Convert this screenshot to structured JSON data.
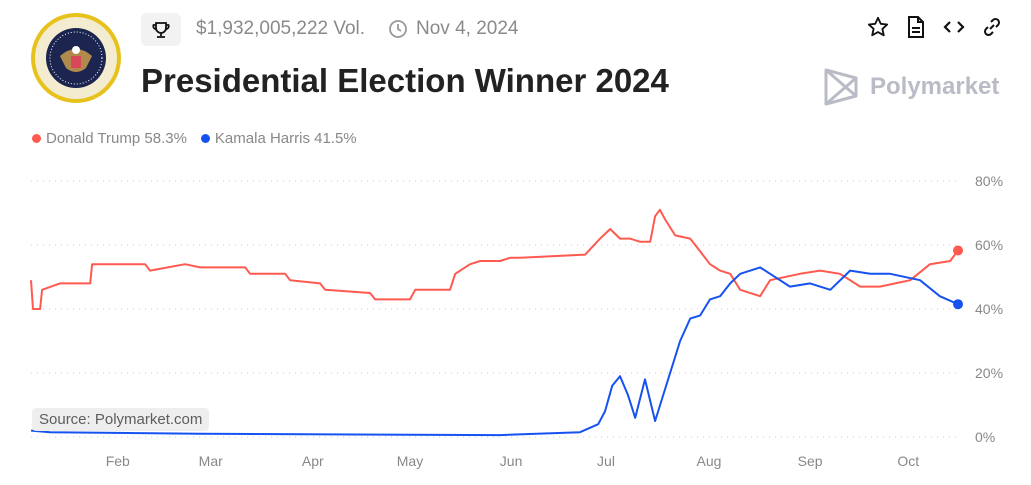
{
  "header": {
    "volume": "$1,932,005,222 Vol.",
    "date": "Nov 4, 2024",
    "title": "Presidential Election Winner 2024",
    "brand": "Polymarket",
    "seal_text": "SEAL OF THE PRESIDENT OF THE UNITED STATES"
  },
  "icons": [
    "trophy-icon",
    "clock-icon",
    "star-icon",
    "document-icon",
    "code-icon",
    "link-icon"
  ],
  "legend": [
    {
      "label": "Donald Trump 58.3%",
      "color": "#ff5a4f"
    },
    {
      "label": "Kamala Harris 41.5%",
      "color": "#1652f0"
    }
  ],
  "source": "Source: Polymarket.com",
  "chart_data": {
    "type": "line",
    "x_unit": "day of year 2024",
    "xlim": [
      4.3,
      289.5
    ],
    "ylim": [
      0,
      80
    ],
    "yticks": [
      {
        "v": 0,
        "label": "0%"
      },
      {
        "v": 20,
        "label": "20%"
      },
      {
        "v": 40,
        "label": "40%"
      },
      {
        "v": 60,
        "label": "60%"
      },
      {
        "v": 80,
        "label": "80%"
      }
    ],
    "xticks": [
      {
        "v": 31,
        "label": "Feb"
      },
      {
        "v": 59.6,
        "label": "Mar"
      },
      {
        "v": 91,
        "label": "Apr"
      },
      {
        "v": 120.9,
        "label": "May"
      },
      {
        "v": 152,
        "label": "Jun"
      },
      {
        "v": 181.2,
        "label": "Jul"
      },
      {
        "v": 212.9,
        "label": "Aug"
      },
      {
        "v": 244,
        "label": "Sep"
      },
      {
        "v": 274.2,
        "label": "Oct"
      }
    ],
    "grid": true,
    "series": [
      {
        "name": "Donald Trump",
        "color": "#ff5a4f",
        "points": [
          [
            4.3,
            49
          ],
          [
            4.9,
            40
          ],
          [
            7.1,
            40
          ],
          [
            7.7,
            46
          ],
          [
            13.2,
            48
          ],
          [
            22.5,
            48
          ],
          [
            23.1,
            54
          ],
          [
            39.4,
            54
          ],
          [
            40.9,
            52
          ],
          [
            51.7,
            54
          ],
          [
            56.3,
            53
          ],
          [
            70.2,
            53
          ],
          [
            71.7,
            51
          ],
          [
            82.5,
            51
          ],
          [
            84,
            49
          ],
          [
            93.2,
            48
          ],
          [
            94.8,
            46
          ],
          [
            108.6,
            45
          ],
          [
            110.2,
            43
          ],
          [
            120.9,
            43
          ],
          [
            122.5,
            46
          ],
          [
            133.2,
            46
          ],
          [
            134.8,
            51
          ],
          [
            139.4,
            54
          ],
          [
            142.5,
            55
          ],
          [
            148.6,
            55
          ],
          [
            151.7,
            56
          ],
          [
            154.8,
            56
          ],
          [
            174.8,
            57
          ],
          [
            179.4,
            62
          ],
          [
            182.5,
            65
          ],
          [
            185.5,
            62
          ],
          [
            188.6,
            62
          ],
          [
            191.7,
            61
          ],
          [
            194.8,
            61
          ],
          [
            196.3,
            69
          ],
          [
            197.8,
            71
          ],
          [
            199.4,
            68
          ],
          [
            202.5,
            63
          ],
          [
            207.1,
            62
          ],
          [
            210.2,
            58
          ],
          [
            213.2,
            54
          ],
          [
            216.3,
            52
          ],
          [
            219.4,
            51
          ],
          [
            222.5,
            46
          ],
          [
            228.6,
            44
          ],
          [
            231.7,
            49
          ],
          [
            240.9,
            51
          ],
          [
            247.1,
            52
          ],
          [
            253.2,
            51
          ],
          [
            259.4,
            47
          ],
          [
            265.5,
            47
          ],
          [
            274.8,
            49
          ],
          [
            280.9,
            54
          ],
          [
            287.1,
            55
          ],
          [
            289.5,
            58.3
          ]
        ]
      },
      {
        "name": "Kamala Harris",
        "color": "#1652f0",
        "points": [
          [
            4.3,
            2
          ],
          [
            10.2,
            1.5
          ],
          [
            56.3,
            1
          ],
          [
            148.6,
            0.6
          ],
          [
            173.2,
            1.5
          ],
          [
            178.8,
            4
          ],
          [
            180.9,
            8
          ],
          [
            183.1,
            16
          ],
          [
            185.5,
            19
          ],
          [
            188,
            13
          ],
          [
            190.2,
            6
          ],
          [
            193.2,
            18
          ],
          [
            196.3,
            5
          ],
          [
            199.4,
            15
          ],
          [
            204,
            30
          ],
          [
            207.1,
            37
          ],
          [
            210.2,
            38
          ],
          [
            213.2,
            43
          ],
          [
            216.3,
            44
          ],
          [
            219.4,
            48
          ],
          [
            222.5,
            51
          ],
          [
            228.6,
            53
          ],
          [
            231.7,
            51
          ],
          [
            237.8,
            47
          ],
          [
            244,
            48
          ],
          [
            250.2,
            46
          ],
          [
            256.3,
            52
          ],
          [
            262.5,
            51
          ],
          [
            268.6,
            51
          ],
          [
            277.8,
            49
          ],
          [
            283.9,
            44
          ],
          [
            289.5,
            41.5
          ]
        ]
      }
    ]
  }
}
